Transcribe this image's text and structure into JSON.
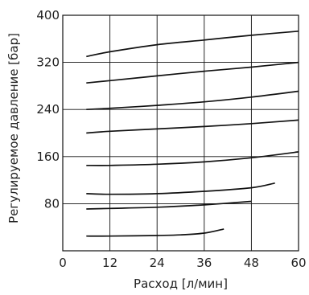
{
  "chart_data": {
    "type": "line",
    "title": "",
    "xlabel": "Расход [л/мин]",
    "ylabel": "Регулируемое давление [бар]",
    "xlim": [
      0,
      60
    ],
    "ylim": [
      0,
      400
    ],
    "xticks": [
      0,
      12,
      24,
      36,
      48,
      60
    ],
    "xtick_labels": [
      "0",
      "12",
      "24",
      "36",
      "48",
      "60"
    ],
    "yticks": [
      0,
      80,
      160,
      240,
      320,
      400
    ],
    "ytick_labels": [
      "",
      "80",
      "160",
      "240",
      "320",
      "400"
    ],
    "grid": true,
    "series": [
      {
        "x": [
          6,
          12,
          24,
          36,
          48,
          60
        ],
        "y": [
          330,
          338,
          350,
          358,
          366,
          373
        ]
      },
      {
        "x": [
          6,
          12,
          24,
          36,
          48,
          60
        ],
        "y": [
          285,
          289,
          297,
          305,
          312,
          320
        ]
      },
      {
        "x": [
          6,
          12,
          24,
          36,
          48,
          60
        ],
        "y": [
          240,
          242,
          247,
          253,
          261,
          271
        ]
      },
      {
        "x": [
          6,
          12,
          24,
          36,
          48,
          60
        ],
        "y": [
          200,
          203,
          207,
          211,
          216,
          222
        ]
      },
      {
        "x": [
          6,
          12,
          24,
          36,
          48,
          60
        ],
        "y": [
          145,
          145,
          147,
          151,
          158,
          168
        ]
      },
      {
        "x": [
          6,
          12,
          24,
          36,
          48,
          54
        ],
        "y": [
          97,
          96,
          97,
          101,
          107,
          115
        ]
      },
      {
        "x": [
          6,
          12,
          24,
          36,
          48
        ],
        "y": [
          71,
          72,
          74,
          78,
          84
        ]
      },
      {
        "x": [
          6,
          12,
          24,
          30,
          36,
          41
        ],
        "y": [
          25,
          25,
          26,
          27,
          30,
          37
        ]
      }
    ],
    "colors": {
      "line": "#111111",
      "grid": "#111111"
    }
  }
}
